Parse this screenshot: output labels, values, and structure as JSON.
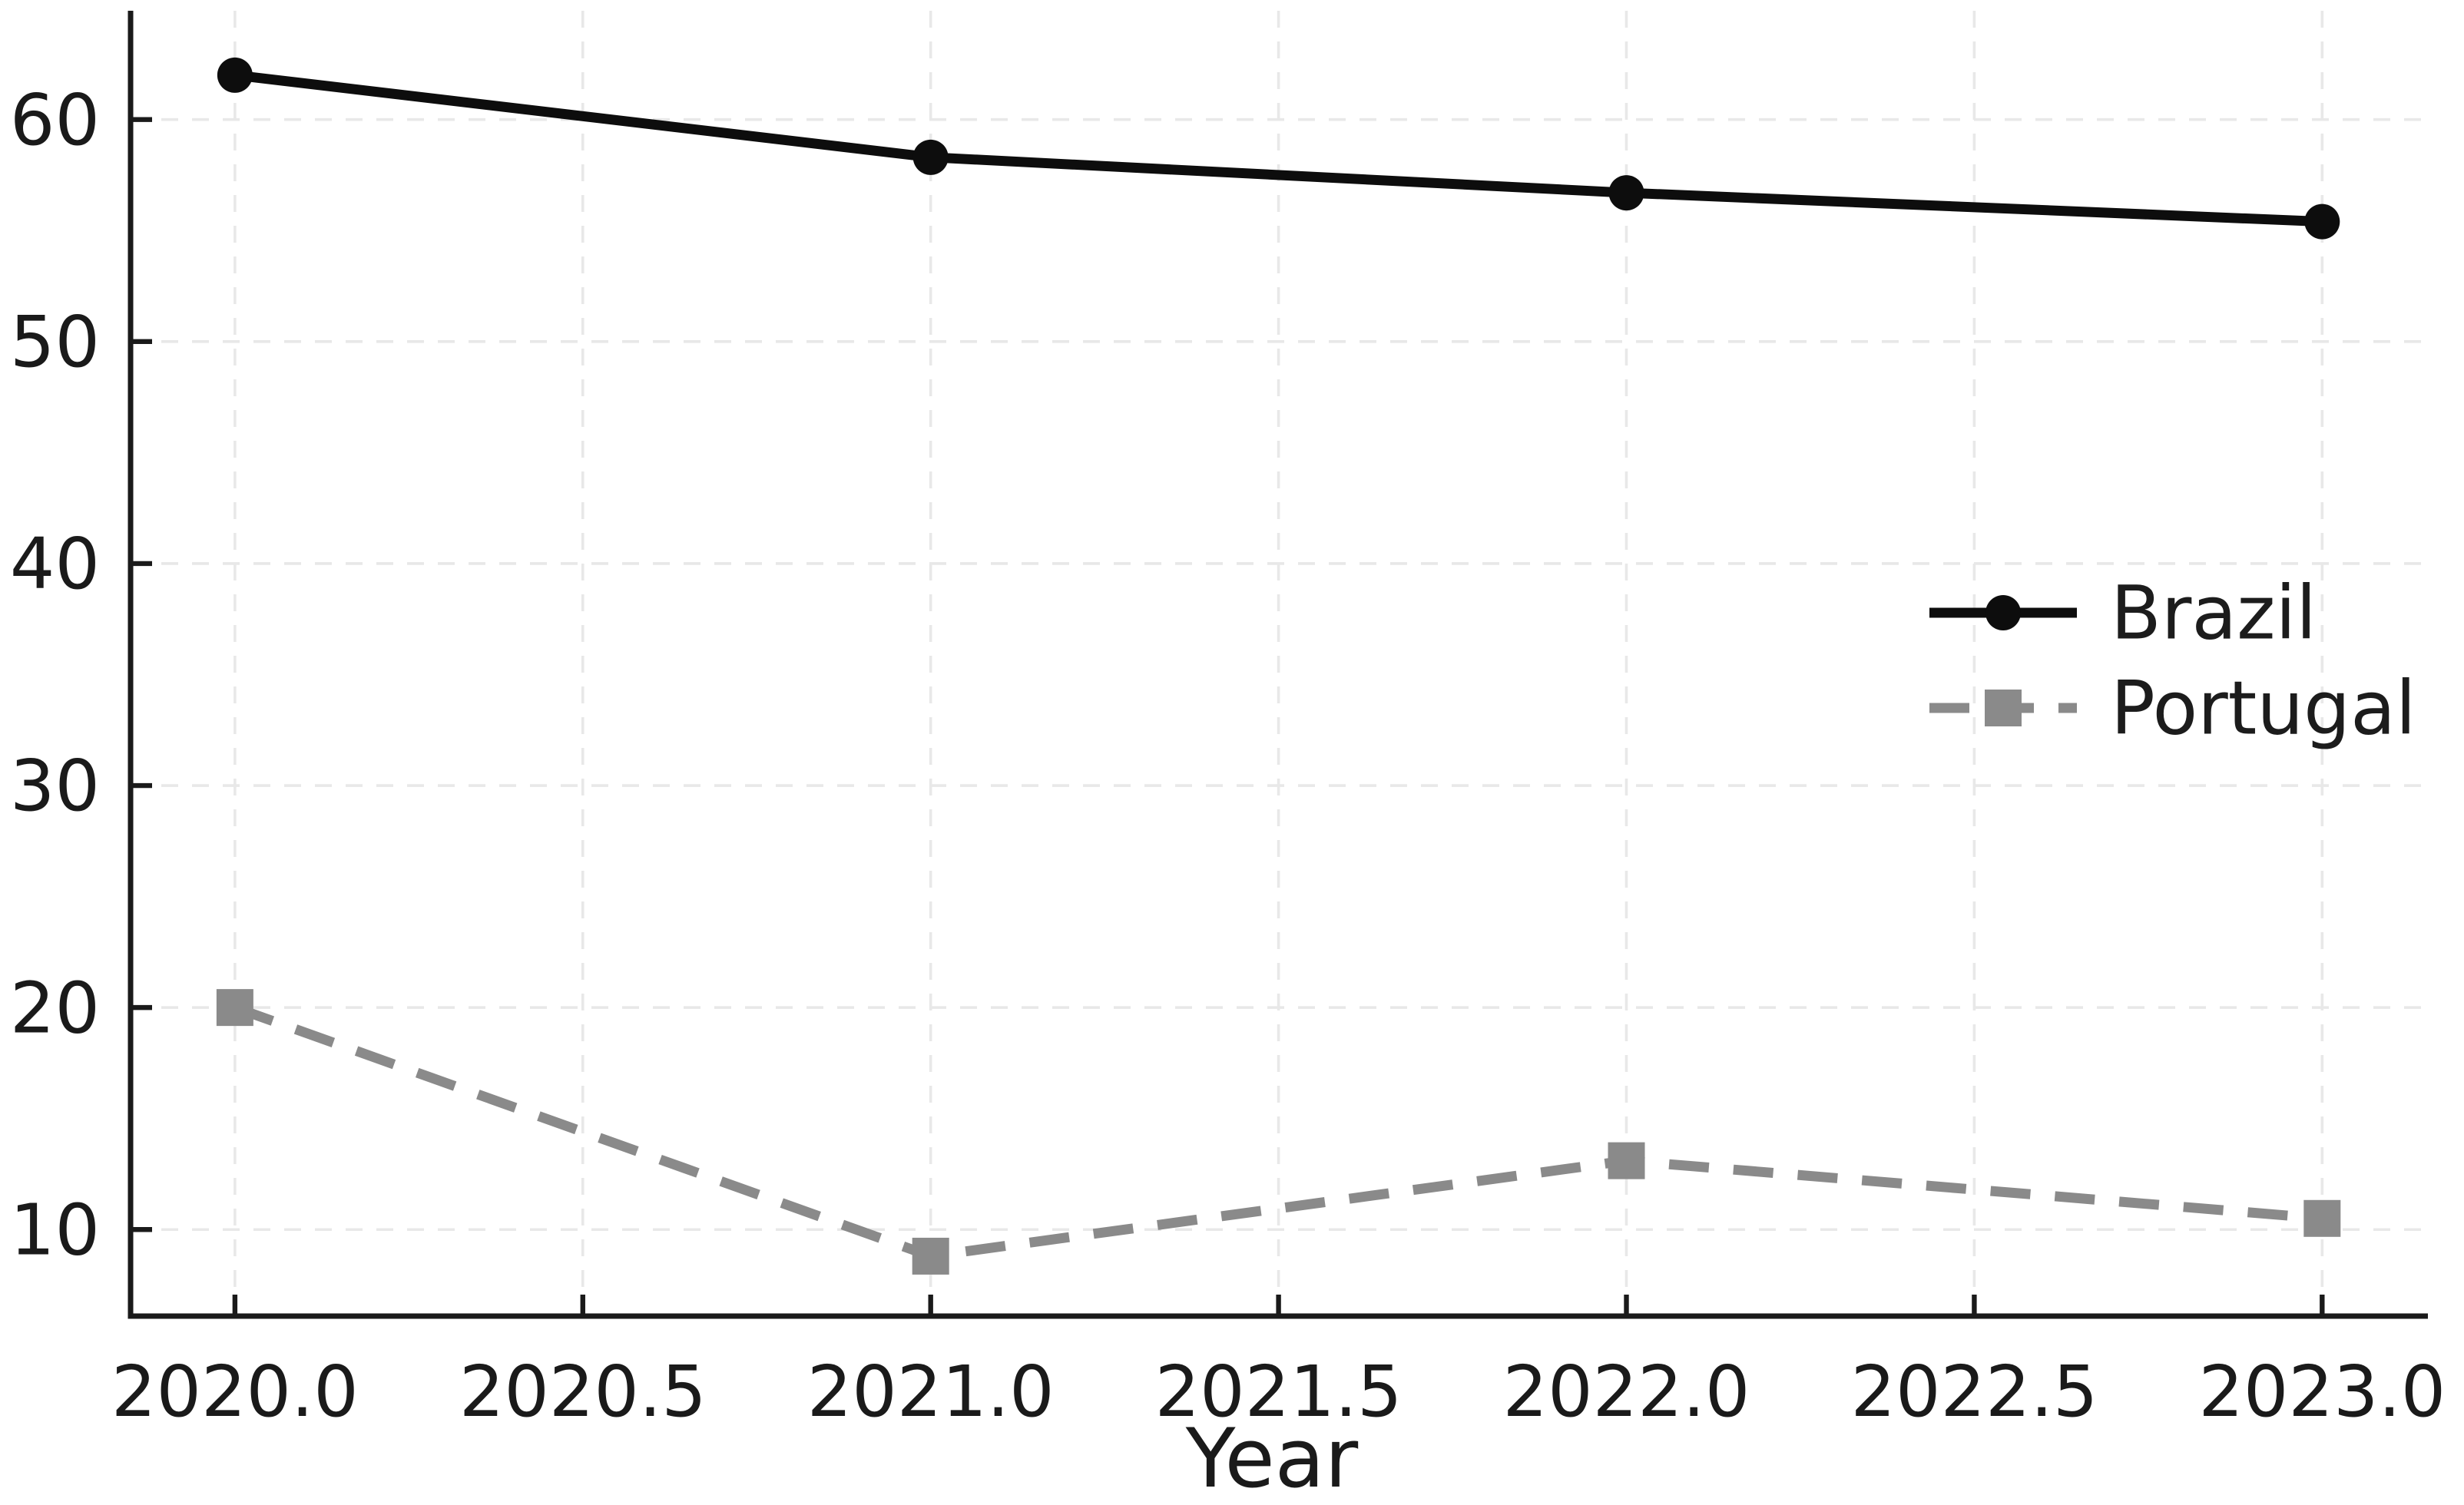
{
  "chart_data": {
    "type": "line",
    "title": "",
    "xlabel": "Year",
    "ylabel": "",
    "x": [
      2020,
      2021,
      2022,
      2023
    ],
    "x_ticks": [
      2020.0,
      2020.5,
      2021.0,
      2021.5,
      2022.0,
      2022.5,
      2023.0
    ],
    "x_tick_labels": [
      "2020.0",
      "2020.5",
      "2021.0",
      "2021.5",
      "2022.0",
      "2022.5",
      "2023.0"
    ],
    "y_ticks": [
      10,
      20,
      30,
      40,
      50,
      60
    ],
    "y_tick_labels": [
      "10",
      "20",
      "30",
      "40",
      "50",
      "60"
    ],
    "xlim": [
      2019.85,
      2023.152
    ],
    "ylim": [
      6.1,
      64.9
    ],
    "grid": true,
    "grid_style": "dashed",
    "legend": {
      "position": "center-right",
      "frame": false
    },
    "series": [
      {
        "name": "Brazil",
        "color": "#0d0d0d",
        "line_style": "solid",
        "marker": "circle",
        "values": [
          62.0,
          58.3,
          56.7,
          55.4
        ]
      },
      {
        "name": "Portugal",
        "color": "#8a8a8a",
        "line_style": "dashed",
        "marker": "square",
        "values": [
          20.0,
          8.8,
          13.1,
          10.5
        ]
      }
    ],
    "colors": {
      "background": "#ffffff",
      "grid": "#e8e8e8",
      "axis": "#1a1a1a",
      "text": "#1a1a1a"
    }
  }
}
